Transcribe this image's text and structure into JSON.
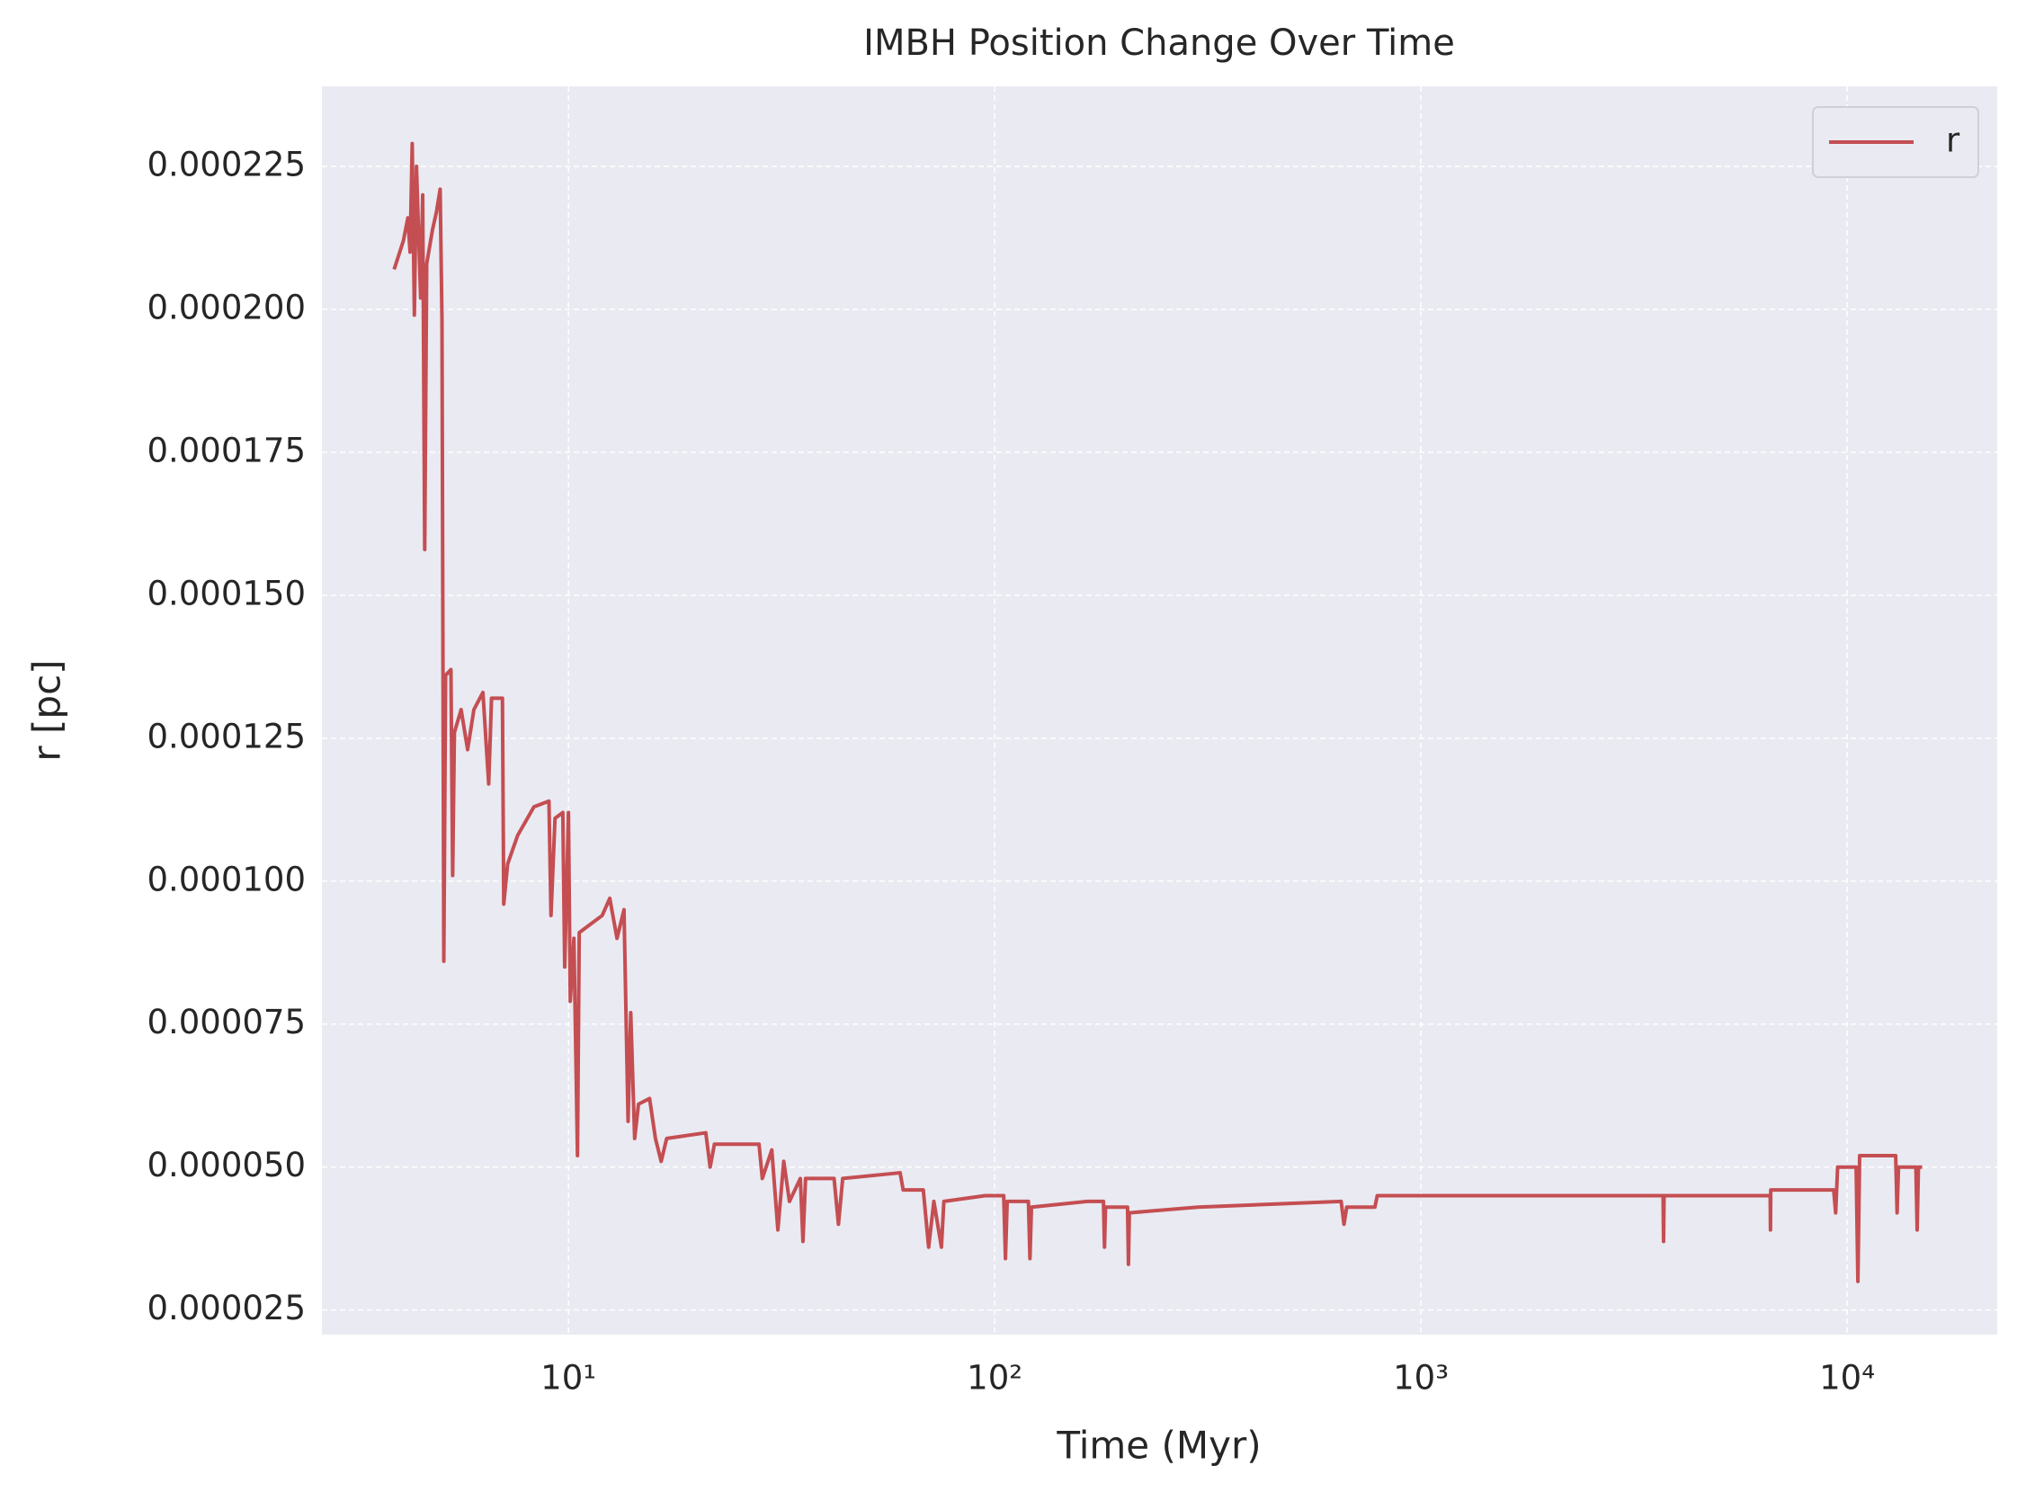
{
  "chart_data": {
    "type": "line",
    "title": "IMBH Position Change Over Time",
    "xlabel": "Time (Myr)",
    "ylabel": "r [pc]",
    "xscale": "log",
    "grid": true,
    "legend": "upper right",
    "xlim": [
      2.64,
      22500
    ],
    "ylim": [
      2.07e-05,
      0.000239
    ],
    "xticks": [
      {
        "value": 10,
        "label": "10¹"
      },
      {
        "value": 100,
        "label": "10²"
      },
      {
        "value": 1000,
        "label": "10³"
      },
      {
        "value": 10000,
        "label": "10⁴"
      }
    ],
    "yticks": [
      {
        "value": 2.5e-05,
        "label": "0.000025"
      },
      {
        "value": 5e-05,
        "label": "0.000050"
      },
      {
        "value": 7.5e-05,
        "label": "0.000075"
      },
      {
        "value": 0.0001,
        "label": "0.000100"
      },
      {
        "value": 0.000125,
        "label": "0.000125"
      },
      {
        "value": 0.00015,
        "label": "0.000150"
      },
      {
        "value": 0.000175,
        "label": "0.000175"
      },
      {
        "value": 0.0002,
        "label": "0.000200"
      },
      {
        "value": 0.000225,
        "label": "0.000225"
      }
    ],
    "x": [
      3.9,
      4.1,
      4.2,
      4.25,
      4.3,
      4.35,
      4.4,
      4.5,
      4.55,
      4.6,
      4.65,
      4.8,
      4.9,
      5.0,
      5.05,
      5.1,
      5.15,
      5.3,
      5.35,
      5.4,
      5.6,
      5.8,
      6.0,
      6.3,
      6.5,
      6.6,
      7.0,
      7.05,
      7.2,
      7.6,
      8.3,
      9.0,
      9.1,
      9.3,
      9.7,
      9.8,
      10.0,
      10.1,
      10.3,
      10.5,
      10.6,
      12.0,
      12.5,
      13.0,
      13.5,
      13.8,
      14.0,
      14.3,
      14.6,
      15.5,
      16.0,
      16.5,
      17,
      21,
      21.5,
      22,
      28,
      28.5,
      30,
      31,
      32,
      33,
      35,
      35.5,
      36,
      42,
      43,
      44,
      60,
      61,
      68,
      70,
      72,
      75,
      76,
      95,
      105,
      106,
      107,
      120,
      121,
      122,
      165,
      180,
      181,
      182,
      205,
      206,
      207,
      300,
      650,
      660,
      670,
      780,
      790,
      3700,
      3710,
      3720,
      6600,
      6610,
      6620,
      9300,
      9400,
      9500,
      10500,
      10600,
      10700,
      13000,
      13100,
      13200,
      14500,
      14600,
      14700,
      15000
    ],
    "series": [
      {
        "name": "r",
        "color": "#c44e52",
        "values": [
          0.000207,
          0.000212,
          0.000216,
          0.00021,
          0.000229,
          0.000199,
          0.000225,
          0.000202,
          0.00022,
          0.000158,
          0.000208,
          0.000214,
          0.000217,
          0.000221,
          0.000198,
          8.6e-05,
          0.000136,
          0.000137,
          0.000101,
          0.000126,
          0.00013,
          0.000123,
          0.00013,
          0.000133,
          0.000117,
          0.000132,
          0.000132,
          9.6e-05,
          0.000103,
          0.000108,
          0.000113,
          0.000114,
          9.4e-05,
          0.000111,
          0.000112,
          8.5e-05,
          0.000112,
          7.9e-05,
          9e-05,
          5.2e-05,
          9.1e-05,
          9.4e-05,
          9.7e-05,
          9e-05,
          9.5e-05,
          5.8e-05,
          7.7e-05,
          5.5e-05,
          6.1e-05,
          6.2e-05,
          5.5e-05,
          5.1e-05,
          5.5e-05,
          5.6e-05,
          5e-05,
          5.4e-05,
          5.4e-05,
          4.8e-05,
          5.3e-05,
          3.9e-05,
          5.1e-05,
          4.4e-05,
          4.8e-05,
          3.7e-05,
          4.8e-05,
          4.8e-05,
          4e-05,
          4.8e-05,
          4.9e-05,
          4.6e-05,
          4.6e-05,
          3.6e-05,
          4.4e-05,
          3.6e-05,
          4.4e-05,
          4.5e-05,
          4.5e-05,
          3.4e-05,
          4.4e-05,
          4.4e-05,
          3.4e-05,
          4.3e-05,
          4.4e-05,
          4.4e-05,
          3.6e-05,
          4.3e-05,
          4.3e-05,
          3.3e-05,
          4.2e-05,
          4.3e-05,
          4.4e-05,
          4e-05,
          4.3e-05,
          4.3e-05,
          4.5e-05,
          4.5e-05,
          3.7e-05,
          4.5e-05,
          4.5e-05,
          3.9e-05,
          4.6e-05,
          4.6e-05,
          4.2e-05,
          5e-05,
          5e-05,
          3e-05,
          5.2e-05,
          5.2e-05,
          4.2e-05,
          5e-05,
          5e-05,
          3.9e-05,
          5e-05,
          5e-05
        ]
      }
    ]
  }
}
